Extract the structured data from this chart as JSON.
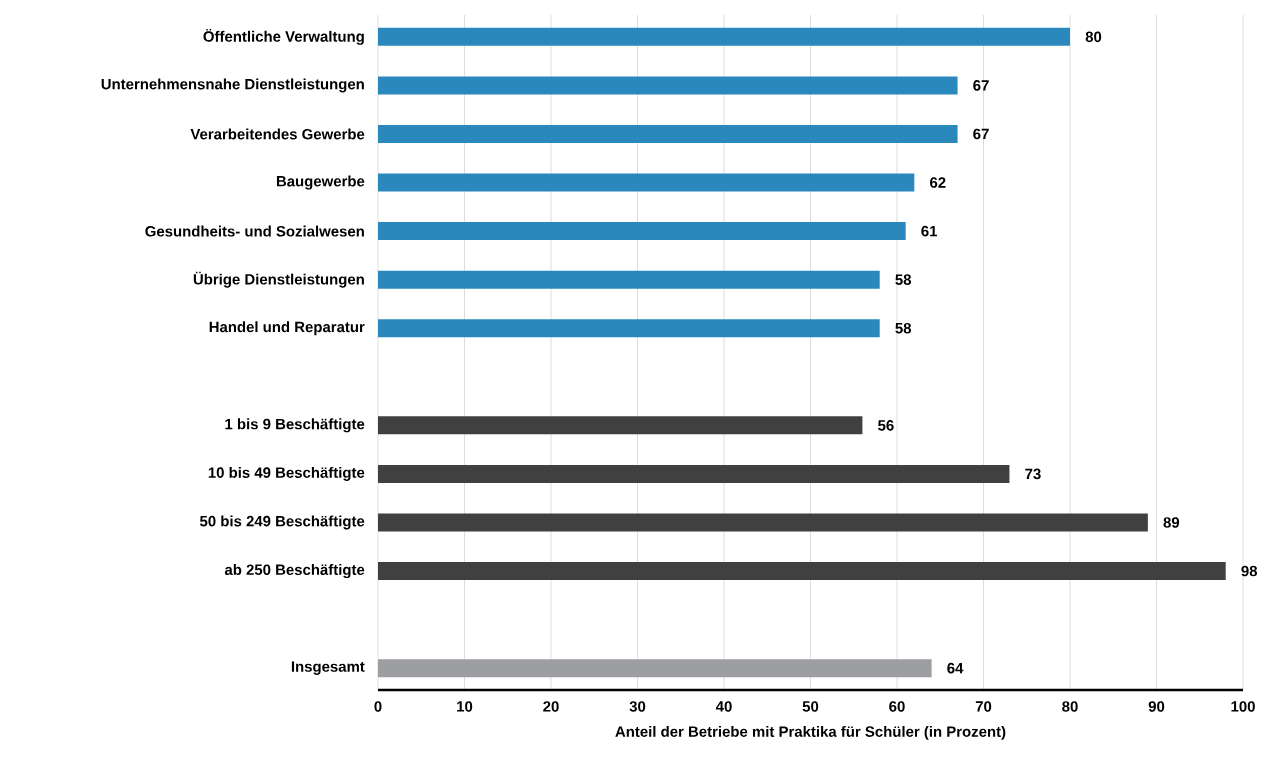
{
  "chart_data": {
    "type": "bar",
    "orientation": "horizontal",
    "xlabel": "Anteil der Betriebe mit Praktika für Schüler (in Prozent)",
    "categories": [
      "Öffentliche Verwaltung",
      "Unternehmensnahe Dienstleistungen",
      "Verarbeitendes Gewerbe",
      "Baugewerbe",
      "Gesundheits- und Sozialwesen",
      "Übrige Dienstleistungen",
      "Handel und Reparatur",
      null,
      "1 bis 9 Beschäftigte",
      "10 bis 49 Beschäftigte",
      "50 bis 249 Beschäftigte",
      "ab 250 Beschäftigte",
      null,
      "Insgesamt"
    ],
    "values": [
      80,
      67,
      67,
      62,
      61,
      58,
      58,
      null,
      56,
      73,
      89,
      98,
      null,
      64
    ],
    "colors": [
      "#2a88bd",
      "#2a88bd",
      "#2a88bd",
      "#2a88bd",
      "#2a88bd",
      "#2a88bd",
      "#2a88bd",
      "#2a88bd",
      "#404040",
      "#404040",
      "#404040",
      "#404040",
      "#404040",
      "#9d9ea2"
    ],
    "xlim": [
      0,
      100
    ],
    "xticks": [
      0,
      10,
      20,
      30,
      40,
      50,
      60,
      70,
      80,
      90,
      100
    ],
    "grid": "x",
    "data_labels": true
  }
}
